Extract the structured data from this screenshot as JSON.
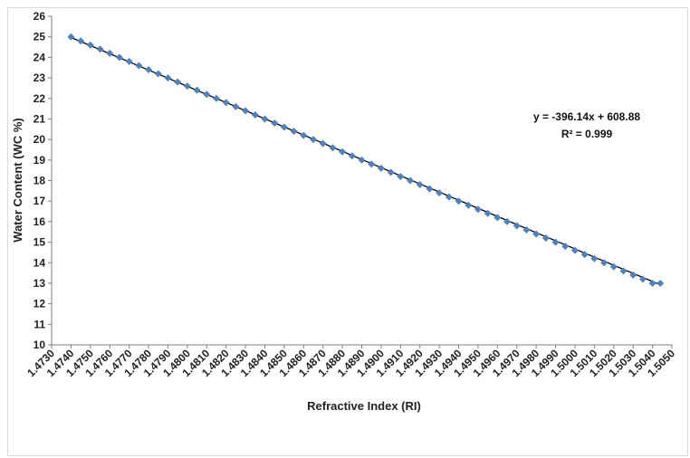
{
  "chart_data": {
    "type": "scatter",
    "xlabel": "Refractive Index (RI)",
    "ylabel": "Water Content (WC %)",
    "xlim": [
      1.473,
      1.505
    ],
    "ylim": [
      10,
      26
    ],
    "x_ticks": [
      "1.4730",
      "1.4740",
      "1.4750",
      "1.4760",
      "1.4770",
      "1.4780",
      "1.4790",
      "1.4800",
      "1.4810",
      "1.4820",
      "1.4830",
      "1.4840",
      "1.4850",
      "1.4860",
      "1.4870",
      "1.4880",
      "1.4890",
      "1.4900",
      "1.4910",
      "1.4920",
      "1.4930",
      "1.4940",
      "1.4950",
      "1.4960",
      "1.4970",
      "1.4980",
      "1.4990",
      "1.5000",
      "1.5010",
      "1.5020",
      "1.5030",
      "1.5040",
      "1.5050"
    ],
    "y_ticks": [
      "10",
      "11",
      "12",
      "13",
      "14",
      "15",
      "16",
      "17",
      "18",
      "19",
      "20",
      "21",
      "22",
      "23",
      "24",
      "25",
      "26"
    ],
    "grid": false,
    "marker_color": "#4f81bd",
    "trendline_color": "#000000",
    "series": [
      {
        "x": [
          1.474,
          1.4745,
          1.475,
          1.4755,
          1.476,
          1.4765,
          1.477,
          1.4775,
          1.478,
          1.4785,
          1.479,
          1.4795,
          1.48,
          1.4805,
          1.481,
          1.4815,
          1.482,
          1.4825,
          1.483,
          1.4835,
          1.484,
          1.4845,
          1.485,
          1.4855,
          1.486,
          1.4865,
          1.487,
          1.4875,
          1.488,
          1.4885,
          1.489,
          1.4895,
          1.49,
          1.4905,
          1.491,
          1.4915,
          1.492,
          1.4925,
          1.493,
          1.4935,
          1.494,
          1.4945,
          1.495,
          1.4955,
          1.496,
          1.4965,
          1.497,
          1.4975,
          1.498,
          1.4985,
          1.499,
          1.4995,
          1.5,
          1.5005,
          1.501,
          1.5015,
          1.502,
          1.5025,
          1.503,
          1.5035,
          1.504,
          1.5044
        ],
        "y": [
          25.0,
          24.8,
          24.6,
          24.4,
          24.2,
          24.0,
          23.8,
          23.6,
          23.4,
          23.2,
          23.0,
          22.8,
          22.6,
          22.4,
          22.2,
          22.0,
          21.8,
          21.6,
          21.4,
          21.2,
          21.0,
          20.8,
          20.6,
          20.4,
          20.2,
          20.0,
          19.8,
          19.6,
          19.4,
          19.2,
          19.0,
          18.8,
          18.6,
          18.4,
          18.2,
          18.0,
          17.8,
          17.6,
          17.4,
          17.2,
          17.0,
          16.8,
          16.6,
          16.4,
          16.2,
          16.0,
          15.8,
          15.6,
          15.4,
          15.2,
          15.0,
          14.8,
          14.6,
          14.4,
          14.2,
          14.0,
          13.8,
          13.6,
          13.4,
          13.2,
          13.0,
          13.0
        ]
      }
    ],
    "trendline": {
      "slope": -396.14,
      "intercept": 608.88
    },
    "annotations": [
      "y = -396.14x + 608.88",
      "R² = 0.999"
    ]
  }
}
